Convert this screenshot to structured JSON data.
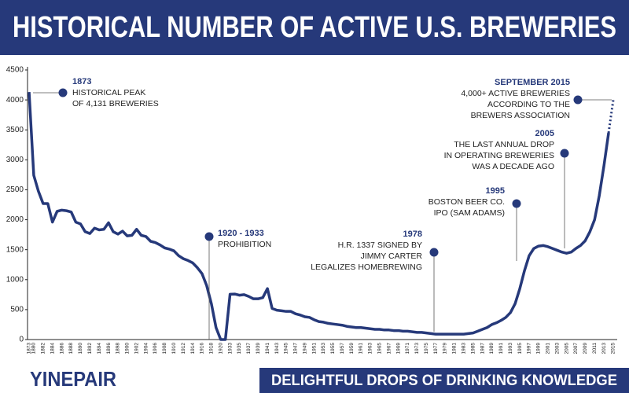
{
  "chart_data": {
    "type": "line",
    "title": "HISTORICAL NUMBER OF ACTIVE U.S. BREWERIES",
    "categories": [
      "1873",
      "1880",
      null,
      "1882",
      null,
      "1884",
      null,
      "1886",
      null,
      "1888",
      null,
      "1890",
      null,
      "1892",
      null,
      "1894",
      null,
      "1896",
      null,
      "1898",
      null,
      "1900",
      null,
      "1902",
      null,
      "1904",
      null,
      "1906",
      null,
      "1908",
      null,
      "1910",
      null,
      "1912",
      null,
      "1914",
      null,
      "1916",
      null,
      "1918",
      null,
      "1920",
      null,
      "1933",
      null,
      "1935",
      null,
      "1937",
      null,
      "1939",
      null,
      "1941",
      null,
      "1943",
      null,
      "1945",
      null,
      "1947",
      null,
      "1949",
      null,
      "1951",
      null,
      "1953",
      null,
      "1955",
      null,
      "1957",
      null,
      "1959",
      null,
      "1961",
      null,
      "1963",
      null,
      "1965",
      null,
      "1967",
      null,
      "1969",
      null,
      "1971",
      null,
      "1973",
      null,
      "1975",
      null,
      "1977",
      null,
      "1979",
      null,
      "1981",
      null,
      "1983",
      null,
      "1985",
      null,
      "1987",
      null,
      "1989",
      null,
      "1991",
      null,
      "1993",
      null,
      "1995",
      null,
      "1997",
      null,
      "1999",
      null,
      "2001",
      null,
      "2003",
      null,
      "2005",
      null,
      "2007",
      null,
      "2009",
      null,
      "2011",
      null,
      "2013",
      null,
      "2015"
    ],
    "series": [
      {
        "color": "#26397a",
        "last_segment_style": "dotted",
        "values": [
          4131,
          2741,
          2474,
          2270,
          2270,
          1960,
          2140,
          2160,
          2150,
          2130,
          1960,
          1930,
          1800,
          1770,
          1860,
          1830,
          1840,
          1950,
          1800,
          1760,
          1810,
          1730,
          1740,
          1840,
          1740,
          1720,
          1640,
          1620,
          1580,
          1530,
          1510,
          1480,
          1400,
          1350,
          1320,
          1280,
          1200,
          1100,
          900,
          600,
          200,
          0,
          0,
          756,
          760,
          740,
          750,
          720,
          680,
          680,
          700,
          850,
          520,
          490,
          480,
          470,
          470,
          430,
          410,
          380,
          370,
          330,
          300,
          290,
          270,
          260,
          250,
          240,
          220,
          210,
          200,
          200,
          190,
          180,
          170,
          170,
          160,
          160,
          150,
          150,
          140,
          140,
          130,
          120,
          120,
          110,
          100,
          90,
          90,
          90,
          90,
          90,
          90,
          90,
          100,
          110,
          140,
          170,
          200,
          250,
          280,
          320,
          370,
          450,
          600,
          850,
          1150,
          1400,
          1520,
          1560,
          1570,
          1550,
          1520,
          1490,
          1460,
          1440,
          1460,
          1520,
          1570,
          1650,
          1800,
          2000,
          2400,
          2900,
          3450,
          4000
        ]
      }
    ],
    "ylim": [
      0,
      4500
    ],
    "yticks": [
      0,
      500,
      1000,
      1500,
      2000,
      2500,
      3000,
      3500,
      4000,
      4500
    ],
    "grid": false,
    "annotations": [
      {
        "title": "1873",
        "lines": [
          "HISTORICAL PEAK",
          "OF 4,131 BREWERIES"
        ]
      },
      {
        "title": "1920 - 1933",
        "lines": [
          "PROHIBITION"
        ]
      },
      {
        "title": "1978",
        "lines": [
          "H.R. 1337 SIGNED BY",
          "JIMMY CARTER",
          "LEGALIZES HOMEBREWING"
        ]
      },
      {
        "title": "1995",
        "lines": [
          "BOSTON BEER CO.",
          "IPO (SAM ADAMS)"
        ]
      },
      {
        "title": "2005",
        "lines": [
          "THE LAST ANNUAL DROP",
          "IN OPERATING BREWERIES",
          "WAS A DECADE AGO"
        ]
      },
      {
        "title": "SEPTEMBER 2015",
        "lines": [
          "4,000+ ACTIVE BREWERIES",
          "ACCORDING TO THE",
          "BREWERS ASSOCIATION"
        ]
      }
    ],
    "footer": {
      "brand": "YINEPAIR",
      "tagline": "DELIGHTFUL DROPS OF DRINKING KNOWLEDGE"
    }
  }
}
